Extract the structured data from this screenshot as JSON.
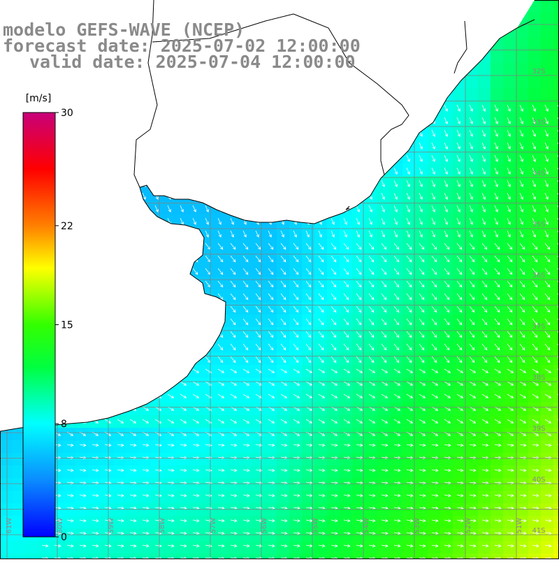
{
  "header": {
    "model": "modelo GEFS-WAVE (NCEP)",
    "forecast": "forecast date: 2025-07-02 12:00:00",
    "valid": "valid date: 2025-07-04 12:00:00"
  },
  "colorbar": {
    "unit": "[m/s]",
    "ticks": [
      {
        "label": "30",
        "value": 30
      },
      {
        "label": "22",
        "value": 22
      },
      {
        "label": "15",
        "value": 15
      },
      {
        "label": "8",
        "value": 8
      },
      {
        "label": "0",
        "value": 0
      }
    ],
    "stops": [
      {
        "v": 0,
        "color": "#0000ff"
      },
      {
        "v": 4,
        "color": "#0a8cff"
      },
      {
        "v": 8,
        "color": "#00ffff"
      },
      {
        "v": 12,
        "color": "#00ff40"
      },
      {
        "v": 15,
        "color": "#33ff00"
      },
      {
        "v": 19,
        "color": "#ffff00"
      },
      {
        "v": 22,
        "color": "#ff8000"
      },
      {
        "v": 26,
        "color": "#ff0000"
      },
      {
        "v": 30,
        "color": "#c8007a"
      }
    ]
  },
  "lat_labels": [
    "32S",
    "33S",
    "34S",
    "35S",
    "36S",
    "37S",
    "38S",
    "39S",
    "40S",
    "41S"
  ],
  "lon_labels": [
    "61W",
    "60W",
    "59W",
    "58W",
    "57W",
    "56W",
    "55W",
    "54W",
    "53W",
    "52W",
    "51W"
  ],
  "colors": {
    "grid": "#808080",
    "land": "#ffffff",
    "coast": "#000000",
    "arrow": "#ffffff",
    "label": "#8a8a8a"
  }
}
